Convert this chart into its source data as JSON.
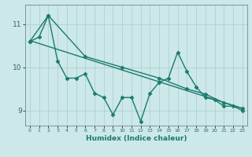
{
  "xlabel": "Humidex (Indice chaleur)",
  "bg_color": "#cce8e8",
  "line_color": "#1a7a6e",
  "grid_color": "#aacccc",
  "tick_color": "#336666",
  "xlim": [
    -0.5,
    23.5
  ],
  "ylim": [
    8.65,
    11.45
  ],
  "yticks": [
    9,
    10,
    11
  ],
  "xticks": [
    0,
    1,
    2,
    3,
    4,
    5,
    6,
    7,
    8,
    9,
    10,
    11,
    12,
    13,
    14,
    15,
    16,
    17,
    18,
    19,
    20,
    21,
    22,
    23
  ],
  "series": [
    {
      "x": [
        0,
        1,
        2,
        3,
        4,
        5,
        6,
        7,
        8,
        9,
        10,
        11,
        12,
        13,
        14,
        15,
        16,
        17,
        18,
        19,
        20,
        21,
        22,
        23
      ],
      "y": [
        10.6,
        10.7,
        11.2,
        10.15,
        9.75,
        9.75,
        9.85,
        9.4,
        9.3,
        8.9,
        9.3,
        9.3,
        8.75,
        9.4,
        9.65,
        9.75,
        10.35,
        9.9,
        9.55,
        9.3,
        9.25,
        9.1,
        9.1,
        9.0
      ],
      "marker": "D",
      "markersize": 2.5,
      "linewidth": 1.0
    },
    {
      "x": [
        0,
        2,
        6,
        10,
        14,
        17,
        19,
        21,
        23
      ],
      "y": [
        10.6,
        11.2,
        10.25,
        10.0,
        9.75,
        9.5,
        9.38,
        9.18,
        9.05
      ],
      "marker": "D",
      "markersize": 2.5,
      "linewidth": 1.0
    },
    {
      "x": [
        0,
        23
      ],
      "y": [
        10.62,
        9.05
      ],
      "marker": null,
      "markersize": 0,
      "linewidth": 1.0
    }
  ]
}
